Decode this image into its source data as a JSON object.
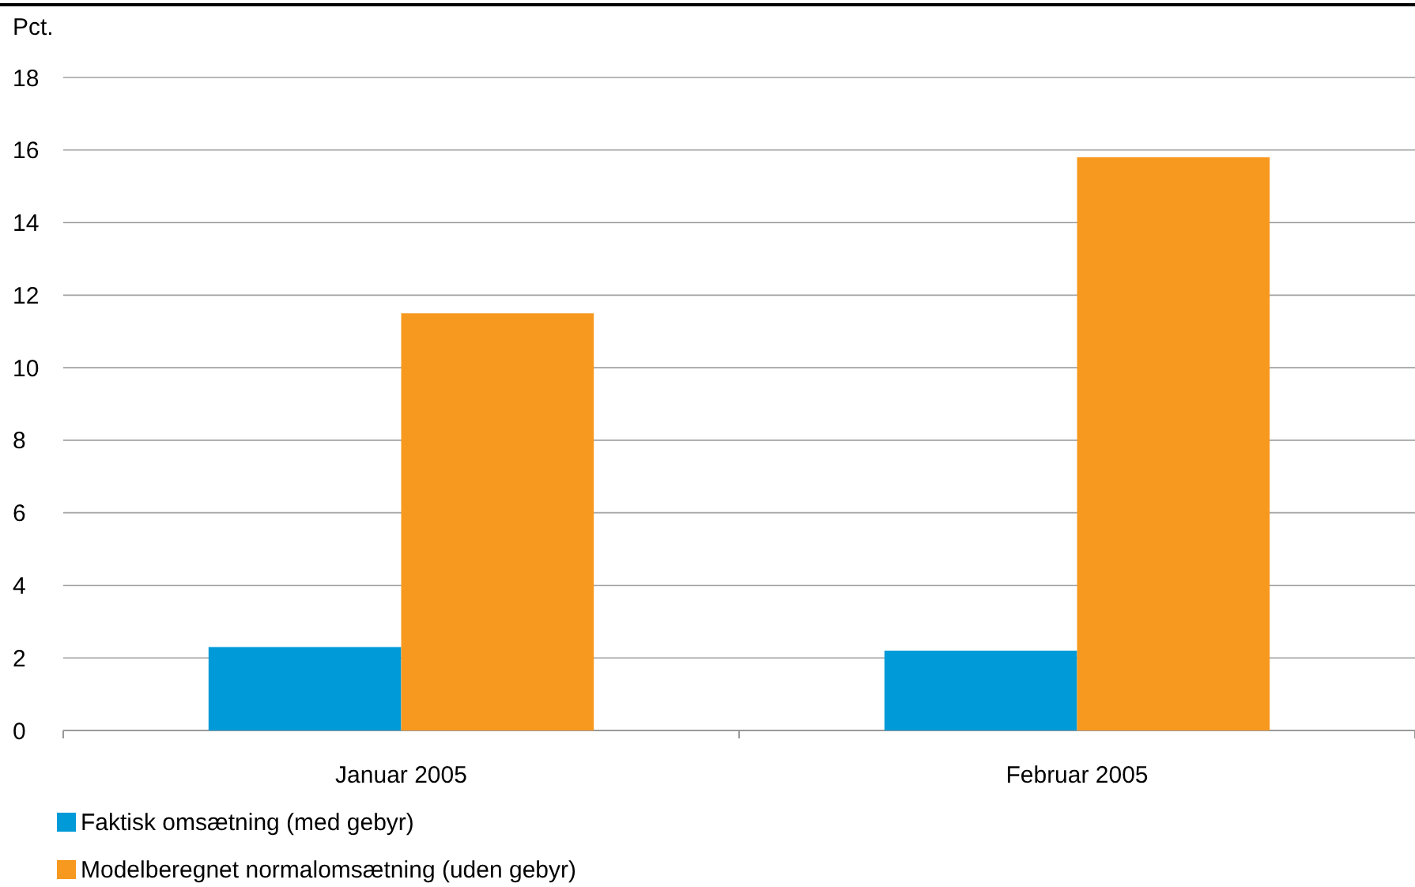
{
  "chart_data": {
    "type": "bar",
    "ylabel": "Pct.",
    "categories": [
      "Januar 2005",
      "Februar 2005"
    ],
    "series": [
      {
        "name": "Faktisk omsætning (med gebyr)",
        "color": "#009ad8",
        "values": [
          2.3,
          2.2
        ]
      },
      {
        "name": "Modelberegnet normalomsætning (uden gebyr)",
        "color": "#f7991f",
        "values": [
          11.5,
          15.8
        ]
      }
    ],
    "ylim": [
      0,
      18
    ],
    "yticks": [
      0,
      2,
      4,
      6,
      8,
      10,
      12,
      14,
      16,
      18
    ],
    "grid": "y",
    "legend": "bottom"
  }
}
